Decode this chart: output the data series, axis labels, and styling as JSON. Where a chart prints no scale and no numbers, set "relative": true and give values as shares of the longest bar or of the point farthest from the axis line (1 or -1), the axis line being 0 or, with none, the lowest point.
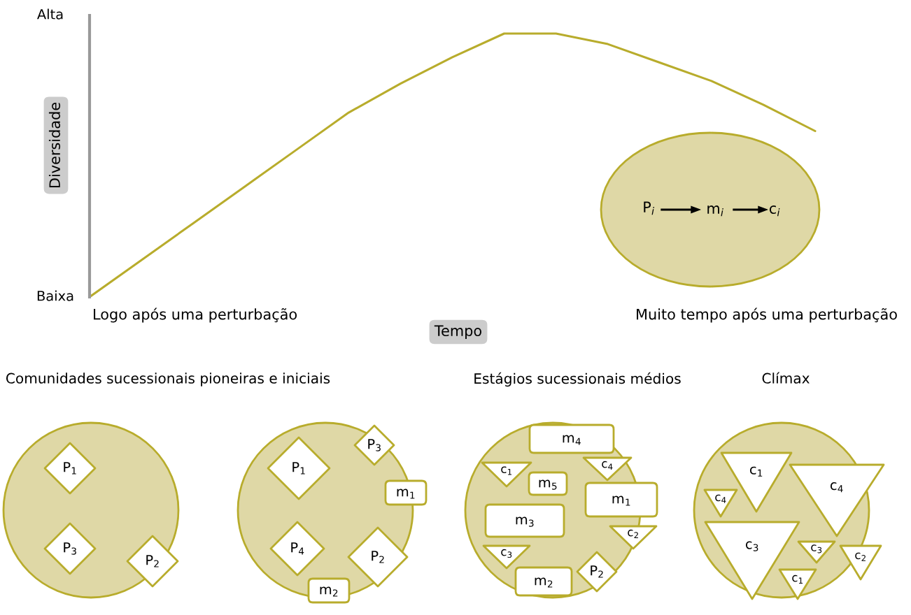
{
  "chart_data": {
    "type": "line",
    "ylabel": "Diversidade",
    "xlabel": "Tempo",
    "categories": [
      null,
      null,
      null,
      null,
      null,
      null,
      null,
      null,
      null,
      null,
      null,
      null,
      null,
      null,
      null
    ],
    "series": [
      {
        "color": "#b8ac2c",
        "values": [
          0,
          0.14,
          0.28,
          0.42,
          0.56,
          0.7,
          0.81,
          0.91,
          1,
          1,
          0.96,
          0.89,
          0.82,
          0.73,
          0.63
        ]
      }
    ],
    "relative": true,
    "marker": "none",
    "line_style": "solid",
    "annotations": [
      "Alta",
      "Baixa",
      "Logo após uma perturbação",
      "Muito tempo após uma perturbação",
      "P$_{i}$",
      "m$_{i}$",
      "c$_{i}$",
      "Comunidades sucessionais pioneiras e iniciais",
      "Estágios sucessionais médios",
      "Clímax",
      "P$_{1}$",
      "P$_{3}$",
      "P$_{2}$",
      "P$_{1}$",
      "P$_{3}$",
      "m$_{1}$",
      "P$_{4}$",
      "P$_{2}$",
      "m$_{2}$",
      "m$_{4}$",
      "c$_{1}$",
      "m$_{5}$",
      "c$_{4}$",
      "m$_{1}$",
      "m$_{3}$",
      "c$_{2}$",
      "c$_{3}$",
      "m$_{2}$",
      "P$_{2}$",
      "c$_{1}$",
      "c$_{4}$",
      "c$_{4}$",
      "c$_{3}$",
      "c$_{3}$",
      "c$_{2}$",
      "c$_{1}$"
    ]
  }
}
